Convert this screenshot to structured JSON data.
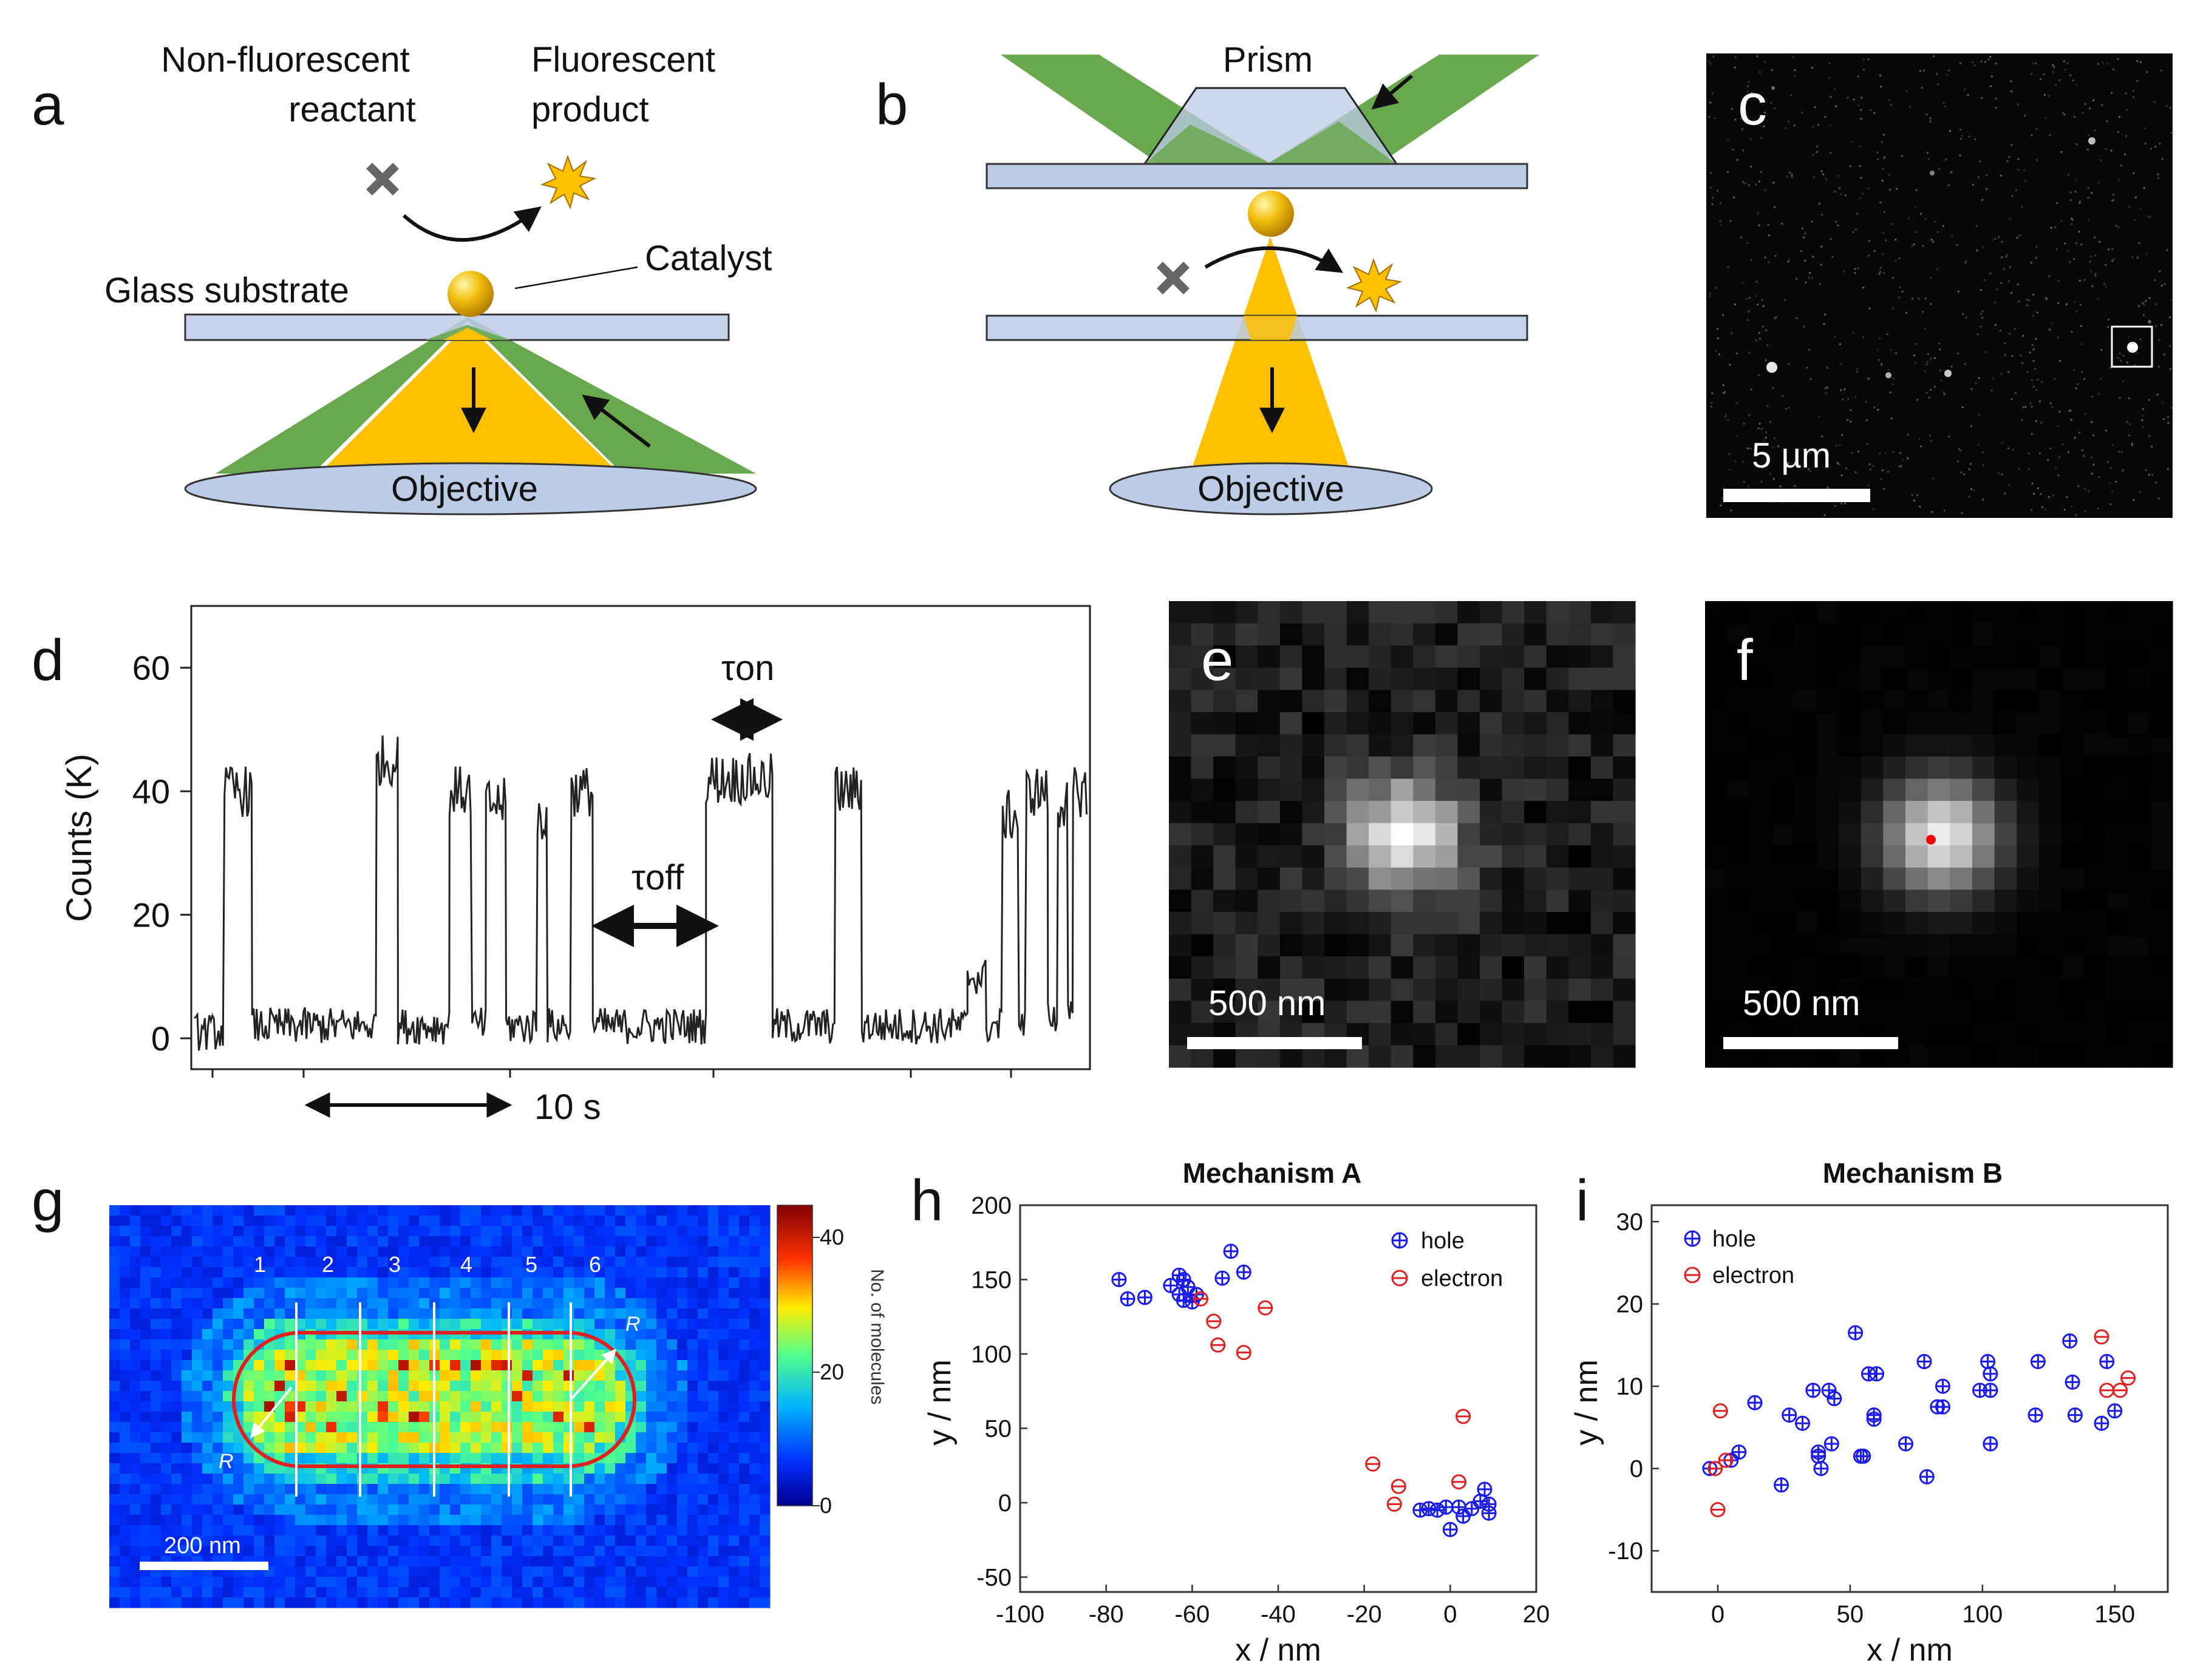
{
  "panels": {
    "a": {
      "letter": "a",
      "reactant_line1": "Non-fluorescent",
      "reactant_line2": "reactant",
      "product_line1": "Fluorescent",
      "product_line2": "product",
      "catalyst": "Catalyst",
      "substrate": "Glass substrate",
      "objective": "Objective"
    },
    "b": {
      "letter": "b",
      "prism": "Prism",
      "objective": "Objective"
    },
    "c": {
      "letter": "c",
      "scalebar": "5 µm"
    },
    "d": {
      "letter": "d",
      "xscale": "10 s"
    },
    "e": {
      "letter": "e",
      "scalebar": "500 nm"
    },
    "f": {
      "letter": "f",
      "scalebar": "500 nm"
    },
    "g": {
      "letter": "g",
      "segments": [
        "1",
        "2",
        "3",
        "4",
        "5",
        "6"
      ],
      "radius": "R",
      "scalebar": "200 nm",
      "colorbar_label": "No. of molecules",
      "colorbar_ticks": [
        "40",
        "20",
        "0"
      ]
    },
    "h": {
      "letter": "h"
    },
    "i": {
      "letter": "i"
    }
  },
  "colors": {
    "green_beam": "#6aa84f",
    "gold_beam": "#ffc000",
    "glass": "#bccbe6",
    "hole": "#1a1aee",
    "electron": "#e02020"
  },
  "icons": [
    "cross-icon",
    "starburst-icon",
    "gold-sphere-icon"
  ],
  "chart_data": [
    {
      "id": "d",
      "type": "line",
      "title": "",
      "xlabel": "",
      "ylabel": "Counts (K)",
      "yticks": [
        "0",
        "20",
        "40",
        "60"
      ],
      "ylim": [
        -5,
        70
      ],
      "tau_on": "τon",
      "tau_off": "τoff",
      "series": [
        {
          "name": "fluorescence trace",
          "levels": [
            [
              0,
              3,
              1
            ],
            [
              2.4,
              3,
              40
            ],
            [
              4.6,
              3,
              2
            ],
            [
              14.5,
              3,
              45
            ],
            [
              16.2,
              3,
              2
            ],
            [
              20.3,
              3,
              40
            ],
            [
              22.1,
              3,
              2
            ],
            [
              23.2,
              3,
              38
            ],
            [
              24.8,
              3,
              2
            ],
            [
              27.3,
              3,
              36
            ],
            [
              28.1,
              3,
              2
            ],
            [
              30.0,
              3,
              40
            ],
            [
              31.7,
              3,
              2
            ],
            [
              40.7,
              3,
              42
            ],
            [
              46.0,
              3,
              2
            ],
            [
              51.0,
              3,
              40
            ],
            [
              53.1,
              3,
              2
            ],
            [
              61.5,
              3,
              10
            ],
            [
              63.0,
              3,
              2
            ],
            [
              64.3,
              3,
              36
            ],
            [
              65.6,
              3,
              2
            ],
            [
              66.2,
              3,
              40
            ],
            [
              67.9,
              3,
              3
            ],
            [
              68.7,
              3,
              38
            ],
            [
              69.5,
              3,
              3
            ],
            [
              69.9,
              3,
              40
            ],
            [
              71.0,
              3,
              2
            ]
          ],
          "x_range": [
            0,
            71
          ]
        }
      ]
    },
    {
      "id": "h",
      "type": "scatter",
      "title": "Mechanism A",
      "xlabel": "x / nm",
      "ylabel": "y / nm",
      "xlim": [
        -100,
        20
      ],
      "ylim": [
        -60,
        200
      ],
      "xticks": [
        -100,
        -80,
        -60,
        -40,
        -20,
        0,
        20
      ],
      "yticks": [
        -50,
        0,
        50,
        100,
        150,
        200
      ],
      "legend_position": "top-right",
      "series": [
        {
          "name": "hole",
          "points": [
            [
              -77,
              150
            ],
            [
              -75,
              137
            ],
            [
              -71,
              138
            ],
            [
              -65,
              146
            ],
            [
              -63,
              153
            ],
            [
              -62,
              150
            ],
            [
              -63,
              140
            ],
            [
              -62,
              136
            ],
            [
              -60,
              135
            ],
            [
              -61,
              145
            ],
            [
              -59,
              140
            ],
            [
              -53,
              151
            ],
            [
              -51,
              169
            ],
            [
              -48,
              155
            ],
            [
              -7,
              -5
            ],
            [
              -5,
              -4
            ],
            [
              -3,
              -5
            ],
            [
              -1,
              -3
            ],
            [
              0,
              -18
            ],
            [
              2,
              -3
            ],
            [
              3,
              -9
            ],
            [
              5,
              -4
            ],
            [
              7,
              1
            ],
            [
              8,
              9
            ],
            [
              9,
              -1
            ],
            [
              9,
              -7
            ]
          ]
        },
        {
          "name": "electron",
          "points": [
            [
              -58,
              137
            ],
            [
              -55,
              122
            ],
            [
              -54,
              106
            ],
            [
              -48,
              101
            ],
            [
              -43,
              131
            ],
            [
              -18,
              26
            ],
            [
              -12,
              11
            ],
            [
              -13,
              -1
            ],
            [
              2,
              14
            ],
            [
              3,
              58
            ]
          ]
        }
      ]
    },
    {
      "id": "i",
      "type": "scatter",
      "title": "Mechanism B",
      "xlabel": "x / nm",
      "ylabel": "y / nm",
      "xlim": [
        -25,
        170
      ],
      "ylim": [
        -15,
        32
      ],
      "xticks": [
        0,
        50,
        100,
        150
      ],
      "yticks": [
        -10,
        0,
        10,
        20,
        30
      ],
      "legend_position": "top-left",
      "series": [
        {
          "name": "hole",
          "points": [
            [
              -3,
              0
            ],
            [
              5,
              1
            ],
            [
              8,
              2
            ],
            [
              14,
              8
            ],
            [
              24,
              -2
            ],
            [
              27,
              6.5
            ],
            [
              32,
              5.5
            ],
            [
              36,
              9.5
            ],
            [
              38,
              1.5
            ],
            [
              39,
              0
            ],
            [
              38,
              2
            ],
            [
              42,
              9.5
            ],
            [
              43,
              3
            ],
            [
              44,
              8.5
            ],
            [
              52,
              16.5
            ],
            [
              54,
              1.5
            ],
            [
              55,
              1.5
            ],
            [
              57,
              11.5
            ],
            [
              59,
              6.5
            ],
            [
              60,
              11.5
            ],
            [
              59,
              6
            ],
            [
              71,
              3
            ],
            [
              78,
              13
            ],
            [
              79,
              -1
            ],
            [
              83,
              7.5
            ],
            [
              85,
              10
            ],
            [
              85,
              7.5
            ],
            [
              99,
              9.5
            ],
            [
              102,
              13
            ],
            [
              103,
              11.5
            ],
            [
              103,
              9.5
            ],
            [
              103,
              3
            ],
            [
              120,
              6.5
            ],
            [
              121,
              13
            ],
            [
              133,
              15.5
            ],
            [
              134,
              10.5
            ],
            [
              135,
              6.5
            ],
            [
              145,
              5.5
            ],
            [
              147,
              13
            ],
            [
              150,
              7
            ]
          ]
        },
        {
          "name": "electron",
          "points": [
            [
              -1,
              0
            ],
            [
              0,
              -5
            ],
            [
              1,
              7
            ],
            [
              3,
              1
            ],
            [
              145,
              16
            ],
            [
              147,
              9.5
            ],
            [
              152,
              9.5
            ],
            [
              155,
              11
            ]
          ]
        }
      ]
    }
  ]
}
